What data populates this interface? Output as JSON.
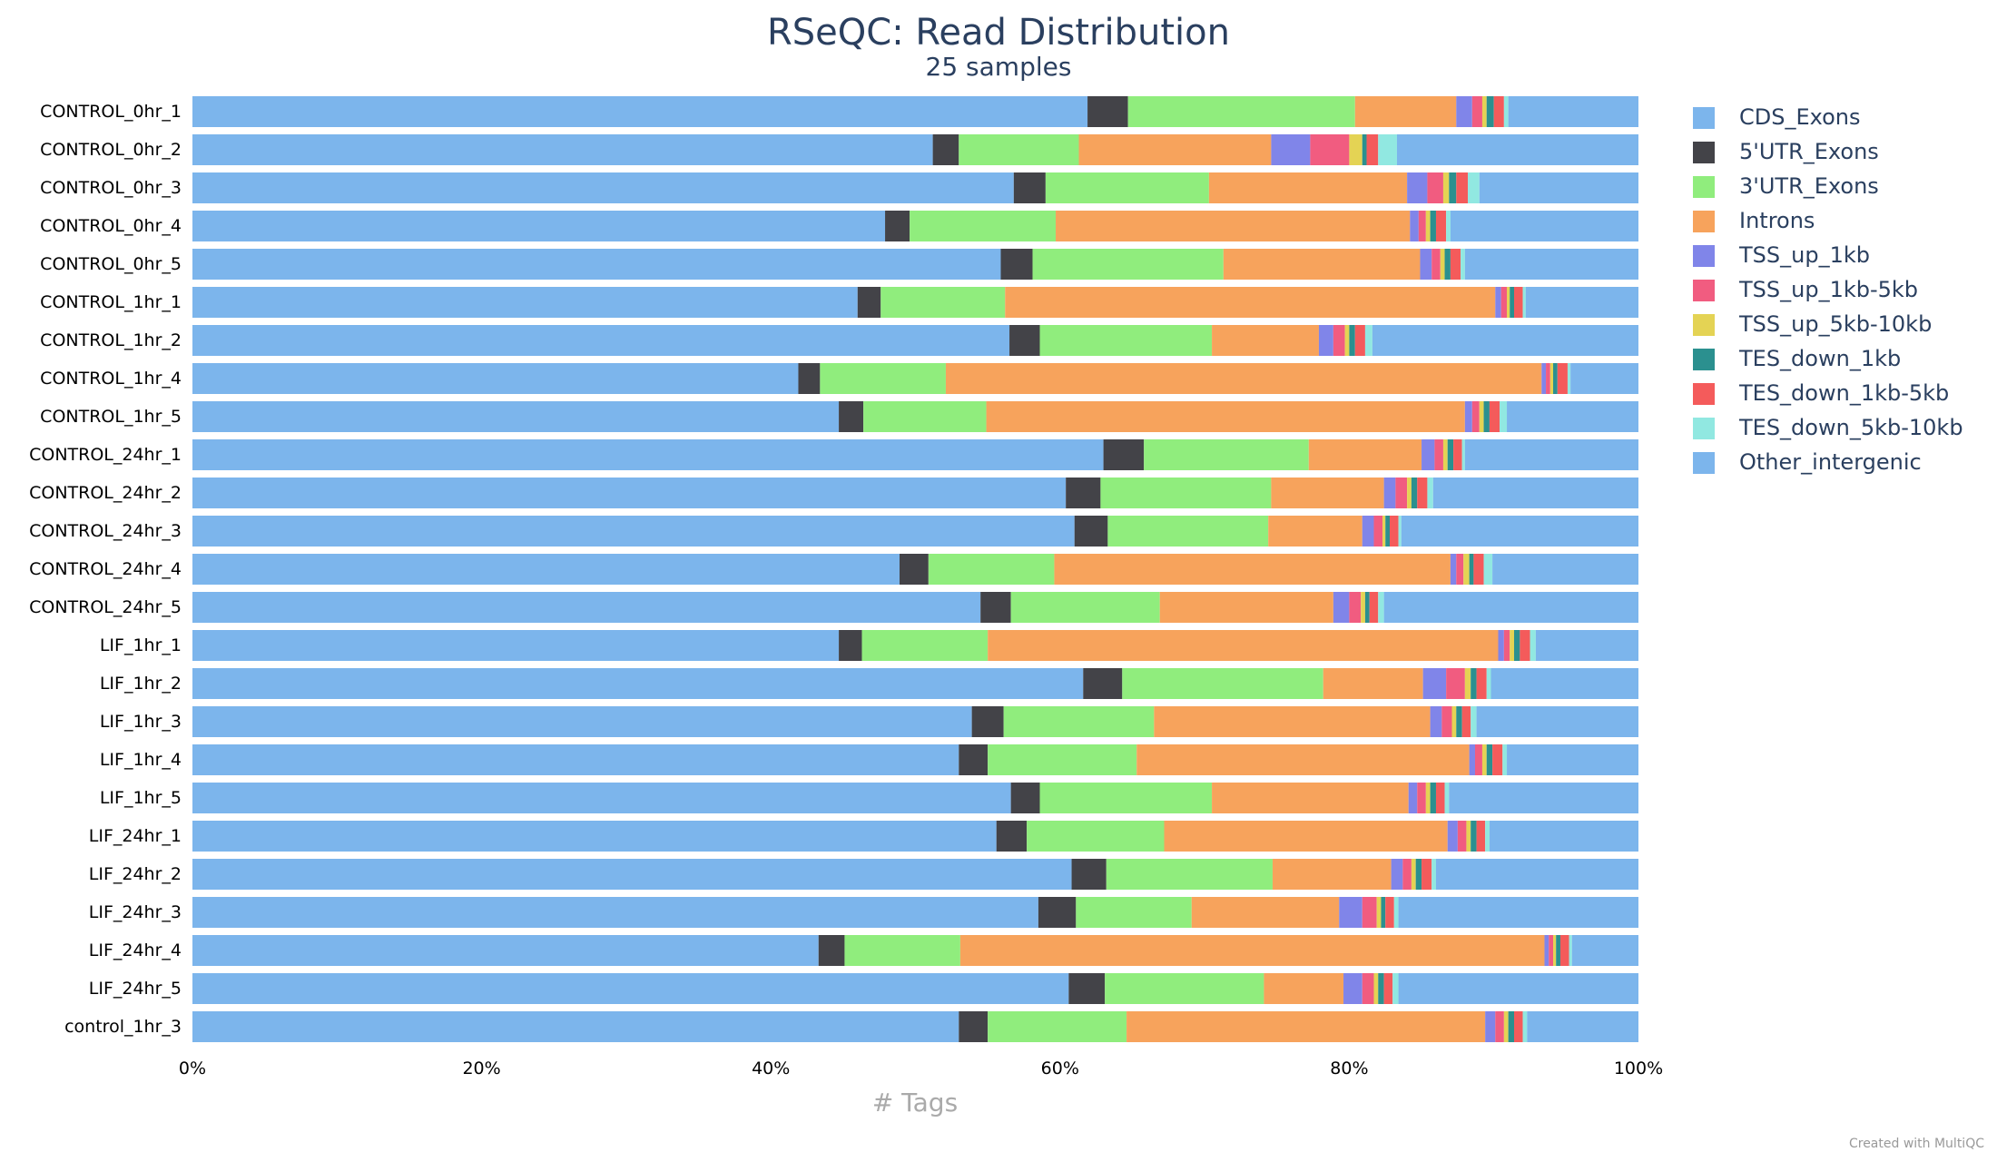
{
  "chart_data": {
    "type": "bar",
    "orientation": "horizontal",
    "stacked": true,
    "normalized_percent": true,
    "title": "RSeQC: Read Distribution",
    "subtitle": "25 samples",
    "xlabel": "# Tags",
    "xlim": [
      0,
      100
    ],
    "x_ticks": [
      "0%",
      "20%",
      "40%",
      "60%",
      "80%",
      "100%"
    ],
    "legend_position": "right",
    "categories": [
      "CONTROL_0hr_1",
      "CONTROL_0hr_2",
      "CONTROL_0hr_3",
      "CONTROL_0hr_4",
      "CONTROL_0hr_5",
      "CONTROL_1hr_1",
      "CONTROL_1hr_2",
      "CONTROL_1hr_4",
      "CONTROL_1hr_5",
      "CONTROL_24hr_1",
      "CONTROL_24hr_2",
      "CONTROL_24hr_3",
      "CONTROL_24hr_4",
      "CONTROL_24hr_5",
      "LIF_1hr_1",
      "LIF_1hr_2",
      "LIF_1hr_3",
      "LIF_1hr_4",
      "LIF_1hr_5",
      "LIF_24hr_1",
      "LIF_24hr_2",
      "LIF_24hr_3",
      "LIF_24hr_4",
      "LIF_24hr_5",
      "control_1hr_3"
    ],
    "series": [
      {
        "name": "CDS_Exons",
        "color": "#7cb5ec",
        "values": [
          61.9,
          51.2,
          56.8,
          47.9,
          55.9,
          46.0,
          56.5,
          41.9,
          44.7,
          63.0,
          60.4,
          61.0,
          48.9,
          54.5,
          44.7,
          61.6,
          53.9,
          53.0,
          56.6,
          55.6,
          60.8,
          58.5,
          43.3,
          60.6,
          53.0
        ]
      },
      {
        "name": "5'UTR_Exons",
        "color": "#434348",
        "values": [
          2.8,
          1.8,
          2.2,
          1.7,
          2.2,
          1.6,
          2.1,
          1.5,
          1.7,
          2.8,
          2.4,
          2.3,
          2.0,
          2.1,
          1.6,
          2.7,
          2.2,
          2.0,
          2.0,
          2.1,
          2.4,
          2.6,
          1.8,
          2.5,
          2.0
        ]
      },
      {
        "name": "3'UTR_Exons",
        "color": "#90ed7d",
        "values": [
          15.7,
          8.3,
          11.3,
          10.1,
          13.2,
          8.6,
          11.9,
          8.7,
          8.5,
          11.4,
          11.8,
          11.1,
          8.7,
          10.3,
          8.7,
          13.9,
          10.4,
          10.3,
          11.9,
          9.5,
          11.5,
          8.0,
          8.0,
          11.0,
          9.6
        ]
      },
      {
        "name": "Introns",
        "color": "#f7a35c",
        "values": [
          7.0,
          13.3,
          13.7,
          24.5,
          13.6,
          33.9,
          7.4,
          41.2,
          33.1,
          7.8,
          7.8,
          6.5,
          27.4,
          12.0,
          35.3,
          6.9,
          19.1,
          23.0,
          13.6,
          19.6,
          8.2,
          10.2,
          40.4,
          5.5,
          24.8
        ]
      },
      {
        "name": "TSS_up_1kb",
        "color": "#8085e9",
        "values": [
          1.1,
          2.7,
          1.4,
          0.6,
          0.8,
          0.4,
          1.0,
          0.3,
          0.5,
          0.9,
          0.8,
          0.8,
          0.4,
          1.1,
          0.4,
          1.6,
          0.8,
          0.4,
          0.6,
          0.7,
          0.8,
          1.6,
          0.3,
          1.3,
          0.7
        ]
      },
      {
        "name": "TSS_up_1kb-5kb",
        "color": "#f15c80",
        "values": [
          0.7,
          2.7,
          1.1,
          0.5,
          0.6,
          0.4,
          0.8,
          0.3,
          0.5,
          0.6,
          0.8,
          0.6,
          0.5,
          0.8,
          0.4,
          1.3,
          0.7,
          0.5,
          0.6,
          0.6,
          0.6,
          1.0,
          0.3,
          0.8,
          0.6
        ]
      },
      {
        "name": "TSS_up_5kb-10kb",
        "color": "#e4d354",
        "values": [
          0.3,
          0.9,
          0.4,
          0.3,
          0.3,
          0.2,
          0.3,
          0.2,
          0.3,
          0.3,
          0.3,
          0.2,
          0.4,
          0.3,
          0.3,
          0.4,
          0.3,
          0.3,
          0.3,
          0.3,
          0.3,
          0.3,
          0.2,
          0.3,
          0.3
        ]
      },
      {
        "name": "TES_down_1kb",
        "color": "#2b908f",
        "values": [
          0.5,
          0.3,
          0.5,
          0.4,
          0.4,
          0.3,
          0.4,
          0.3,
          0.4,
          0.4,
          0.4,
          0.3,
          0.3,
          0.3,
          0.4,
          0.4,
          0.4,
          0.4,
          0.4,
          0.4,
          0.4,
          0.3,
          0.3,
          0.4,
          0.4
        ]
      },
      {
        "name": "TES_down_1kb-5kb",
        "color": "#f45b5b",
        "values": [
          0.7,
          0.8,
          0.8,
          0.7,
          0.7,
          0.6,
          0.7,
          0.7,
          0.7,
          0.6,
          0.7,
          0.6,
          0.7,
          0.6,
          0.7,
          0.7,
          0.6,
          0.7,
          0.6,
          0.6,
          0.7,
          0.6,
          0.6,
          0.6,
          0.6
        ]
      },
      {
        "name": "TES_down_5kb-10kb",
        "color": "#91e8e1",
        "values": [
          0.3,
          1.3,
          0.8,
          0.3,
          0.3,
          0.2,
          0.5,
          0.2,
          0.5,
          0.2,
          0.4,
          0.2,
          0.6,
          0.4,
          0.4,
          0.3,
          0.4,
          0.3,
          0.3,
          0.3,
          0.3,
          0.3,
          0.2,
          0.4,
          0.3
        ]
      },
      {
        "name": "Other_intergenic",
        "color": "#7cb5ec",
        "values": [
          9.0,
          16.7,
          11.0,
          13.0,
          12.0,
          7.8,
          18.4,
          4.7,
          9.1,
          12.0,
          14.2,
          16.4,
          10.1,
          17.6,
          7.1,
          10.2,
          11.2,
          9.1,
          13.1,
          10.3,
          14.0,
          16.6,
          4.6,
          16.6,
          7.7
        ]
      }
    ]
  },
  "credit": "Created with MultiQC"
}
